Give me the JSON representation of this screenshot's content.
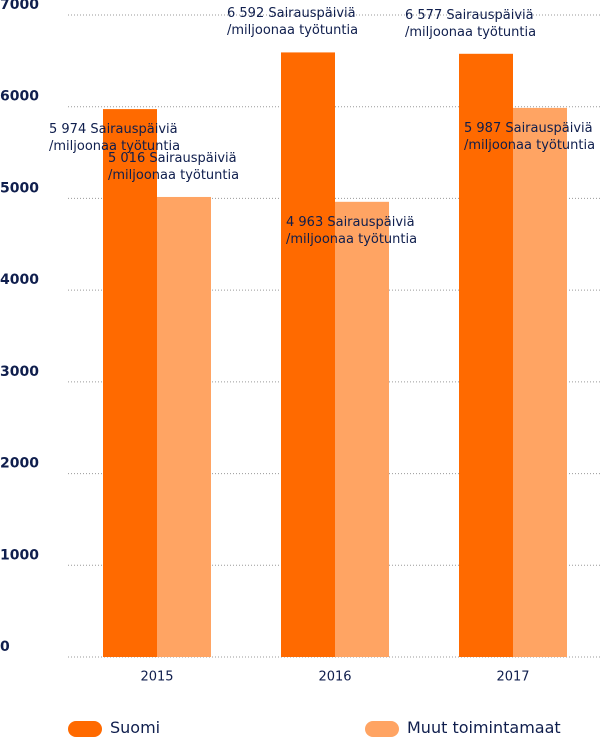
{
  "chart_data": {
    "type": "bar",
    "categories": [
      "2015",
      "2016",
      "2017"
    ],
    "series": [
      {
        "name": "Suomi",
        "color": "#ff6a00",
        "values": [
          5974,
          6592,
          6577
        ],
        "value_labels": [
          "5 974 Sairauspäiviä\n/miljoonaa työtuntia",
          "6 592 Sairauspäiviä\n/miljoonaa työtuntia",
          "6 577 Sairauspäiviä\n/miljoonaa työtuntia"
        ]
      },
      {
        "name": "Muut toimintamaat",
        "color": "#ffa463",
        "values": [
          5016,
          4963,
          5987
        ],
        "value_labels": [
          "5 016 Sairauspäiviä\n/miljoonaa työtuntia",
          "4 963 Sairauspäiviä\n/miljoonaa työtuntia",
          "5 987 Sairauspäiviä\n/miljoonaa työtuntia"
        ]
      }
    ],
    "ylim": [
      0,
      7000
    ],
    "yticks": [
      0,
      1000,
      2000,
      3000,
      4000,
      5000,
      6000,
      7000
    ],
    "grid": true,
    "legend": "bottom"
  }
}
